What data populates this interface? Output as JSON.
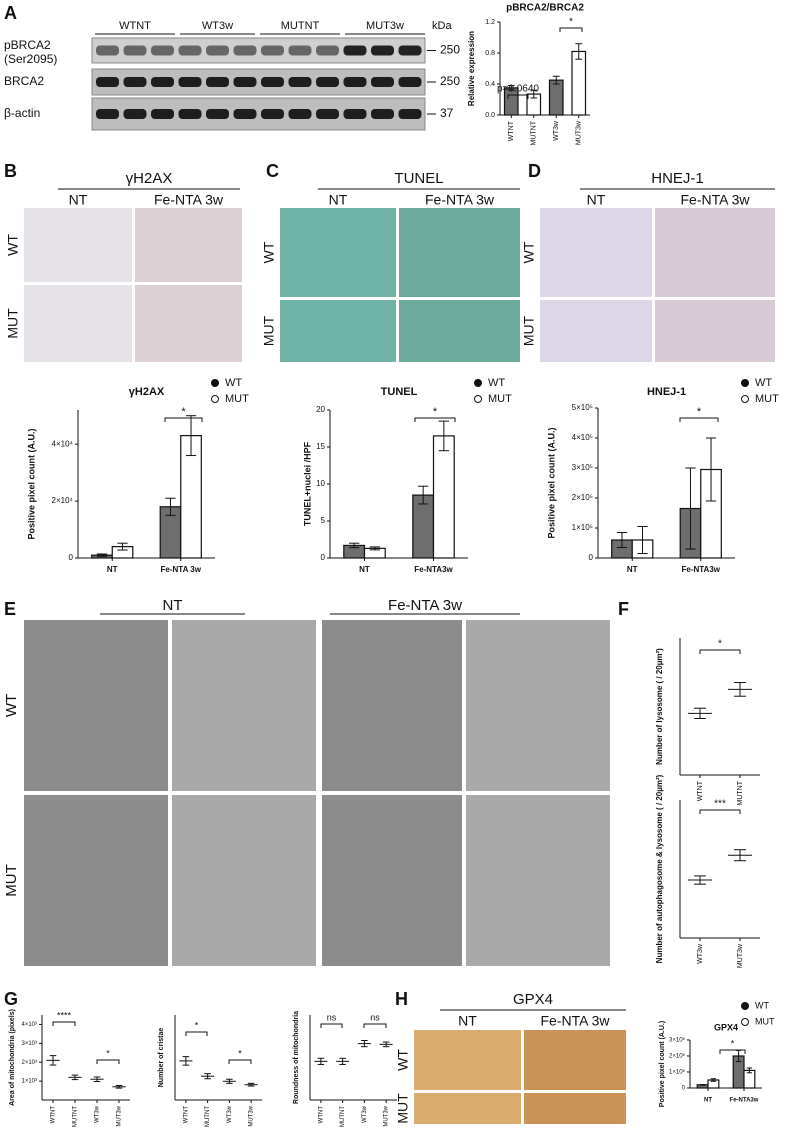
{
  "panels": [
    "A",
    "B",
    "C",
    "D",
    "E",
    "F",
    "G",
    "H"
  ],
  "blot": {
    "groups": [
      "WTNT",
      "WT3w",
      "MUTNT",
      "MUT3w"
    ],
    "unit": "kDa",
    "rows": [
      {
        "label": "pBRCA2",
        "sublabel": "(Ser2095)",
        "marker": "250"
      },
      {
        "label": "BRCA2",
        "marker": "250"
      },
      {
        "label": "β-actin",
        "marker": "37"
      }
    ]
  },
  "image_panels": [
    {
      "title": "γH2AX",
      "columns": [
        "NT",
        "Fe-NTA 3w"
      ],
      "rows": [
        "WT",
        "MUT"
      ]
    },
    {
      "title": "TUNEL",
      "columns": [
        "NT",
        "Fe-NTA 3w"
      ],
      "rows": [
        "WT",
        "MUT"
      ]
    },
    {
      "title": "HNEJ-1",
      "columns": [
        "NT",
        "Fe-NTA 3w"
      ],
      "rows": [
        "WT",
        "MUT"
      ]
    },
    {
      "title": "GPX4",
      "columns": [
        "NT",
        "Fe-NTA 3w"
      ],
      "rows": [
        "WT",
        "MUT"
      ]
    }
  ],
  "em_panel": {
    "columns": [
      "NT",
      "Fe-NTA 3w"
    ],
    "rows": [
      "WT",
      "MUT"
    ]
  },
  "chart_data": [
    {
      "type": "bar",
      "title": "pBRCA2/BRCA2",
      "y_label": "Relative expression",
      "categories": [
        "WTNT",
        "MUTNT",
        "WT3w",
        "MUT3w"
      ],
      "values": [
        0.35,
        0.27,
        0.45,
        0.82
      ],
      "errors": [
        0.03,
        0.05,
        0.05,
        0.1
      ],
      "colors": [
        "#6e6e6e",
        "#ffffff",
        "#6e6e6e",
        "#ffffff"
      ],
      "ylim": [
        0,
        1.2
      ],
      "yticks": [
        {
          "value": 0,
          "label": "0.0"
        },
        0.4,
        0.8,
        1.2
      ],
      "annotations": [
        "p=0.0640",
        "*"
      ]
    },
    {
      "type": "bar",
      "title": "γH2AX",
      "y_label": "Positive pixel count (A.U.)",
      "categories": [
        "NT",
        "Fe-NTA 3w"
      ],
      "series": [
        {
          "name": "WT",
          "color": "#6e6e6e",
          "values": [
            1000,
            18000
          ],
          "errors": [
            400,
            3000
          ]
        },
        {
          "name": "MUT",
          "color": "#ffffff",
          "values": [
            4000,
            43000
          ],
          "errors": [
            1200,
            7000
          ]
        }
      ],
      "ylim": [
        0,
        52000
      ],
      "yticks": [
        0,
        {
          "value": 20000,
          "label": "2×10⁴"
        },
        {
          "value": 40000,
          "label": "4×10⁴"
        }
      ],
      "legend": true,
      "annotations": [
        "*"
      ]
    },
    {
      "type": "bar",
      "title": "TUNEL",
      "y_label": "TUNEL+nuclei /HPF",
      "categories": [
        "NT",
        "Fe-NTA3w"
      ],
      "series": [
        {
          "name": "WT",
          "color": "#6e6e6e",
          "values": [
            1.7,
            8.5
          ],
          "errors": [
            0.3,
            1.2
          ]
        },
        {
          "name": "MUT",
          "color": "#ffffff",
          "values": [
            1.3,
            16.5
          ],
          "errors": [
            0.2,
            2
          ]
        }
      ],
      "ylim": [
        0,
        20
      ],
      "yticks": [
        0,
        5,
        10,
        15,
        20
      ],
      "legend": true,
      "annotations": [
        "*"
      ]
    },
    {
      "type": "bar",
      "title": "HNEJ-1",
      "y_label": "Positive pixel count (A.U.)",
      "categories": [
        "NT",
        "Fe-NTA3w"
      ],
      "series": [
        {
          "name": "WT",
          "color": "#6e6e6e",
          "values": [
            60000,
            165000
          ],
          "errors": [
            25000,
            135000
          ]
        },
        {
          "name": "MUT",
          "color": "#ffffff",
          "values": [
            60000,
            295000
          ],
          "errors": [
            45000,
            105000
          ]
        }
      ],
      "ylim": [
        0,
        500000
      ],
      "yticks": [
        0,
        {
          "value": 100000,
          "label": "1×10⁵"
        },
        {
          "value": 200000,
          "label": "2×10⁵"
        },
        {
          "value": 300000,
          "label": "3×10⁵"
        },
        {
          "value": 400000,
          "label": "4×10⁵"
        },
        {
          "value": 500000,
          "label": "5×10⁵"
        }
      ],
      "legend": true,
      "annotations": [
        "*"
      ]
    },
    {
      "type": "dotplot",
      "y_label": "Number of lysosome ( / 20µm²)",
      "categories": [
        "WTNT",
        "MUTNT"
      ],
      "means": [
        1.8,
        2.5
      ],
      "errors": [
        0.15,
        0.2
      ],
      "color": "#e03030",
      "ylim": [
        0,
        4
      ],
      "annotations": [
        "*"
      ]
    },
    {
      "type": "dotplot",
      "y_label": "Number of autophagosome & lysosome ( / 20µm²)",
      "categories": [
        "WT3w",
        "MUT3w"
      ],
      "means": [
        2.1,
        3.0
      ],
      "errors": [
        0.15,
        0.2
      ],
      "color": "#e03030",
      "ylim": [
        0,
        5
      ],
      "annotations": [
        "***"
      ]
    },
    {
      "type": "dotplot",
      "y_label": "Area of mitochondria (pixels)",
      "categories": [
        "WTNT",
        "MUTNT",
        "WT3w",
        "MUT3w"
      ],
      "means": [
        2100,
        1200,
        1100,
        700
      ],
      "errors": [
        250,
        120,
        120,
        70
      ],
      "color": "#e03030",
      "ylim": [
        0,
        4500
      ],
      "yticks": [
        {
          "value": 1000,
          "label": "1×10³"
        },
        {
          "value": 2000,
          "label": "2×10³"
        },
        {
          "value": 3000,
          "label": "3×10³"
        },
        {
          "value": 4000,
          "label": "4×10³"
        }
      ],
      "annotations": [
        "****",
        "*"
      ]
    },
    {
      "type": "dotplot",
      "y_label": "Number of cristae",
      "categories": [
        "WTNT",
        "MUTNT",
        "WT3w",
        "MUT3w"
      ],
      "means": [
        23,
        14,
        11,
        9
      ],
      "errors": [
        2.5,
        1.5,
        1.2,
        0.8
      ],
      "color": "#e03030",
      "ylim": [
        0,
        50
      ],
      "annotations": [
        "*",
        "*"
      ]
    },
    {
      "type": "dotplot",
      "y_label": "Roundness of mitochondria",
      "categories": [
        "WTNT",
        "MUTNT",
        "WT3w",
        "MUT3w"
      ],
      "means": [
        0.5,
        0.5,
        0.73,
        0.72
      ],
      "errors": [
        0.04,
        0.04,
        0.04,
        0.03
      ],
      "color": "#e03030",
      "ylim": [
        0,
        1.1
      ],
      "annotations": [
        "ns",
        "ns"
      ]
    },
    {
      "type": "bar",
      "title": "GPX4",
      "y_label": "Positive pixel count (A.U.)",
      "categories": [
        "NT",
        "Fe-NTA3w"
      ],
      "series": [
        {
          "name": "WT",
          "color": "#6e6e6e",
          "values": [
            200000,
            2000000
          ],
          "errors": [
            20000,
            350000
          ]
        },
        {
          "name": "MUT",
          "color": "#ffffff",
          "values": [
            500000,
            1100000
          ],
          "errors": [
            80000,
            150000
          ]
        }
      ],
      "ylim": [
        0,
        3000000
      ],
      "yticks": [
        0,
        {
          "value": 1000000,
          "label": "1×10⁶"
        },
        {
          "value": 2000000,
          "label": "2×10⁶"
        },
        {
          "value": 3000000,
          "label": "3×10⁶"
        }
      ],
      "legend": true,
      "annotations": [
        "*"
      ]
    }
  ]
}
